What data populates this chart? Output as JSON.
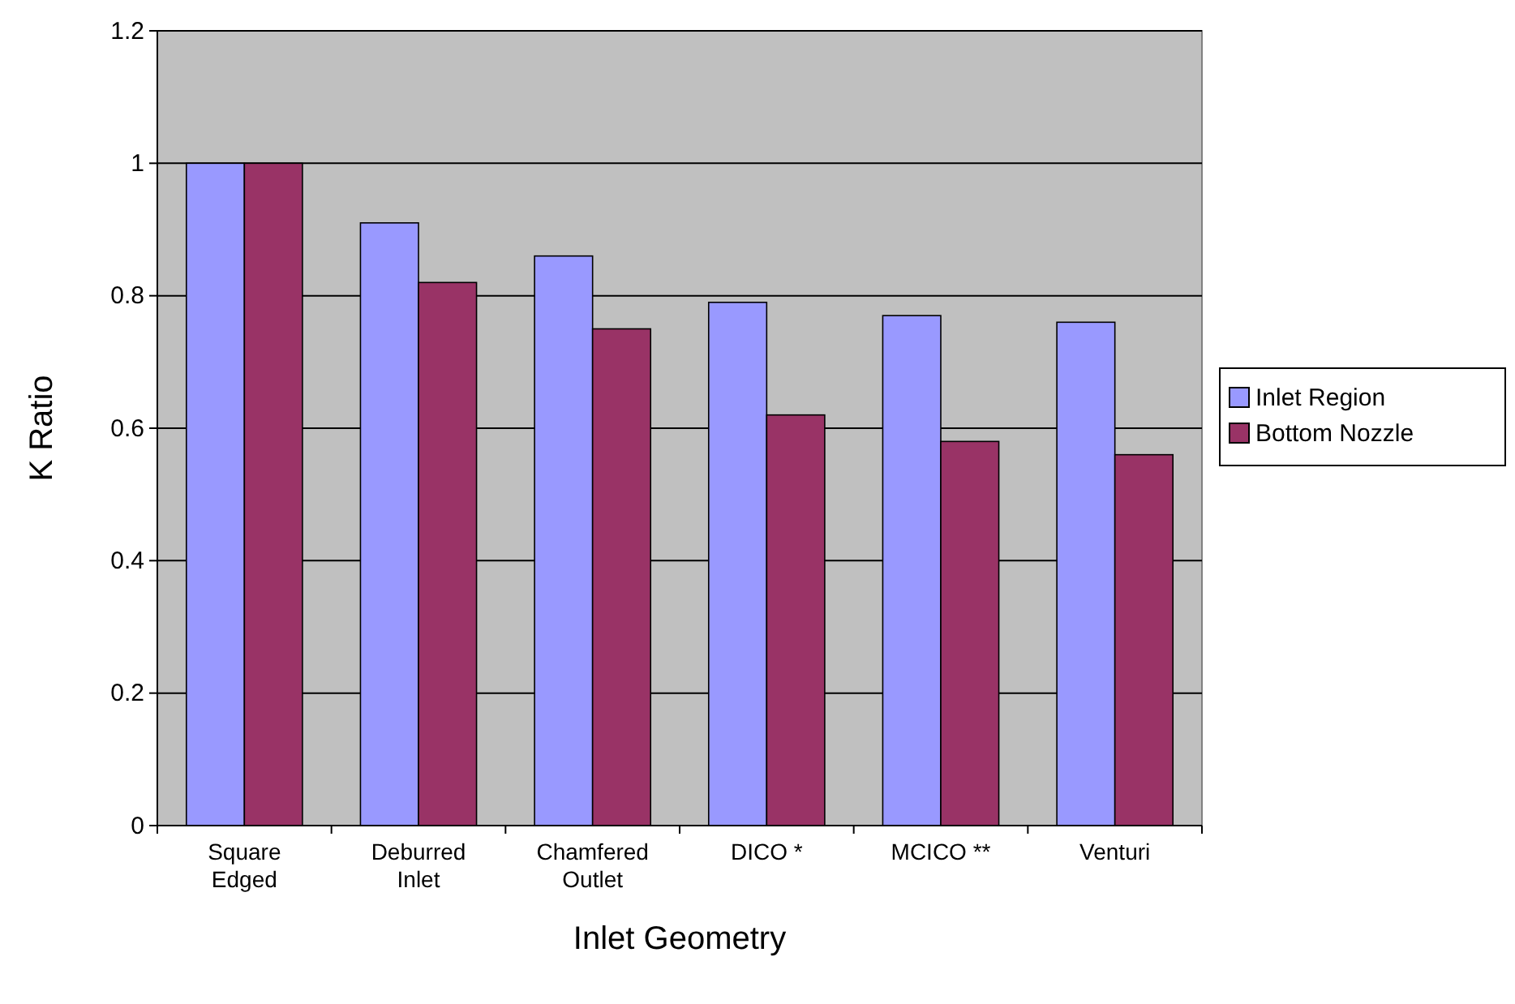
{
  "chart_data": {
    "type": "bar",
    "xlabel": "Inlet Geometry",
    "ylabel": "K Ratio",
    "categories": [
      "Square Edged",
      "Deburred Inlet",
      "Chamfered Outlet",
      "DICO *",
      "MCICO **",
      "Venturi"
    ],
    "series": [
      {
        "name": "Inlet Region",
        "color": "#9999ff",
        "values": [
          1,
          0.91,
          0.86,
          0.79,
          0.77,
          0.76
        ]
      },
      {
        "name": "Bottom Nozzle",
        "color": "#993366",
        "values": [
          1,
          0.82,
          0.75,
          0.62,
          0.58,
          0.56
        ]
      }
    ],
    "ylim": [
      0,
      1.2
    ],
    "yticks": [
      0,
      0.2,
      0.4,
      0.6,
      0.8,
      1,
      1.2
    ],
    "grid": "y",
    "legend": "right"
  }
}
